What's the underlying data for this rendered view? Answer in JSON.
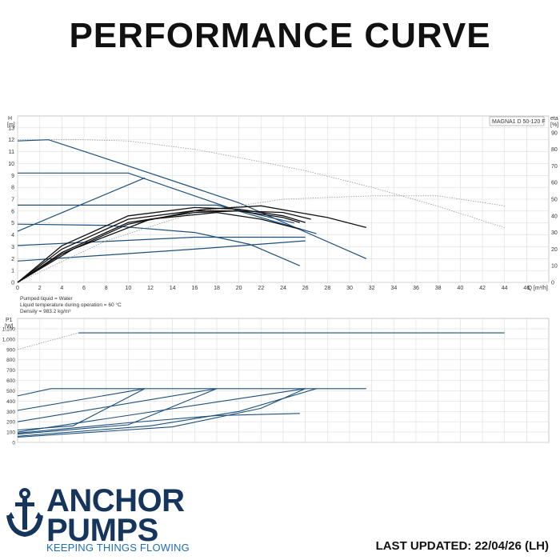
{
  "page": {
    "title": "PERFORMANCE CURVE",
    "updated": "LAST UPDATED: 22/04/26 (LH)"
  },
  "brand": {
    "line1": "ANCHOR",
    "line2": "PUMPS",
    "tagline": "KEEPING THINGS FLOWING",
    "colors": {
      "navy": "#16355c",
      "blue": "#1f6fb5"
    },
    "icon": "anchor-icon"
  },
  "chart_data": [
    {
      "type": "line",
      "title": "",
      "model_label": "MAGNA1 D 50-120 F",
      "xlabel": "Q [m³/h]",
      "ylabel": "H\n[m]",
      "y2label": "eta\n[%]",
      "xlim": [
        0,
        48
      ],
      "ylim": [
        0,
        14
      ],
      "y2lim": [
        0,
        100
      ],
      "xticks": [
        0,
        2,
        4,
        6,
        8,
        10,
        12,
        14,
        16,
        18,
        20,
        22,
        24,
        26,
        28,
        30,
        32,
        34,
        36,
        38,
        40,
        42,
        44,
        46
      ],
      "yticks": [
        0,
        1,
        2,
        3,
        4,
        5,
        6,
        7,
        8,
        9,
        10,
        11,
        12,
        13
      ],
      "y2ticks": [
        0,
        10,
        20,
        30,
        40,
        50,
        60,
        70,
        80,
        90
      ],
      "grid": true,
      "notes": [
        "Pumped liquid = Water",
        "Liquid temperature during operation = 60 °C",
        "Density = 983.2 kg/m³"
      ],
      "series": [
        {
          "kind": "head",
          "style": "dotted",
          "points": [
            [
              0,
              12
            ],
            [
              6,
              12
            ],
            [
              10,
              11.9
            ],
            [
              16,
              11.2
            ],
            [
              20,
              10.5
            ],
            [
              26,
              9.4
            ],
            [
              32,
              8.0
            ],
            [
              38,
              6.4
            ],
            [
              44,
              4.6
            ]
          ]
        },
        {
          "kind": "head",
          "points": [
            [
              0,
              11.9
            ],
            [
              2.8,
              12
            ],
            [
              10,
              9.8
            ],
            [
              20,
              6.7
            ],
            [
              31.5,
              2.0
            ]
          ]
        },
        {
          "kind": "head",
          "points": [
            [
              0,
              9.2
            ],
            [
              10,
              9.2
            ],
            [
              20,
              6.0
            ],
            [
              27,
              4.1
            ]
          ]
        },
        {
          "kind": "head",
          "points": [
            [
              0,
              6.5
            ],
            [
              18,
              6.5
            ],
            [
              25,
              5.0
            ]
          ]
        },
        {
          "kind": "head",
          "points": [
            [
              0,
              4.9
            ],
            [
              8,
              4.8
            ],
            [
              16,
              4.2
            ],
            [
              21,
              3.2
            ],
            [
              25.5,
              1.4
            ]
          ]
        },
        {
          "kind": "head",
          "points": [
            [
              0,
              3.1
            ],
            [
              16,
              3.8
            ],
            [
              26,
              3.8
            ]
          ]
        },
        {
          "kind": "head",
          "points": [
            [
              0,
              1.8
            ],
            [
              16,
              2.8
            ],
            [
              26,
              3.5
            ]
          ]
        },
        {
          "kind": "system",
          "points": [
            [
              0,
              4.3
            ],
            [
              11.5,
              8.8
            ]
          ]
        },
        {
          "kind": "eta",
          "style": "dotted",
          "points": [
            [
              0,
              0
            ],
            [
              8,
              25
            ],
            [
              16,
              42
            ],
            [
              24,
              50
            ],
            [
              32,
              52
            ],
            [
              38,
              52
            ],
            [
              44,
              46
            ]
          ]
        },
        {
          "kind": "eta",
          "points": [
            [
              0,
              0
            ],
            [
              4,
              20
            ],
            [
              10,
              38
            ],
            [
              17,
              44
            ],
            [
              22,
              46
            ],
            [
              28,
              39
            ],
            [
              31.5,
              33
            ]
          ]
        },
        {
          "kind": "eta",
          "points": [
            [
              0,
              0
            ],
            [
              4,
              22
            ],
            [
              10,
              40
            ],
            [
              16,
              45
            ],
            [
              20,
              44
            ],
            [
              24,
              40
            ],
            [
              26,
              36
            ]
          ]
        },
        {
          "kind": "eta",
          "points": [
            [
              0,
              0
            ],
            [
              4,
              18
            ],
            [
              10,
              36
            ],
            [
              16,
              42
            ],
            [
              20,
              43
            ],
            [
              24,
              42
            ],
            [
              26.5,
              38
            ]
          ]
        },
        {
          "kind": "eta",
          "points": [
            [
              0,
              0
            ],
            [
              4,
              17
            ],
            [
              10,
              35
            ],
            [
              16,
              43
            ],
            [
              20,
              43
            ],
            [
              24,
              39
            ],
            [
              25.5,
              36
            ]
          ]
        },
        {
          "kind": "eta",
          "points": [
            [
              0,
              0
            ],
            [
              5,
              20
            ],
            [
              12,
              38
            ],
            [
              18,
              42
            ],
            [
              22,
              38
            ],
            [
              25.5,
              32
            ]
          ]
        }
      ]
    },
    {
      "type": "line",
      "title": "",
      "ylabel": "P1\n[W]",
      "xlim": [
        0,
        48
      ],
      "ylim": [
        0,
        1200
      ],
      "yticks": [
        "0",
        "100",
        "200",
        "300",
        "400",
        "500",
        "600",
        "700",
        "800",
        "900",
        "1,000",
        "1,100"
      ],
      "yticks_values": [
        0,
        100,
        200,
        300,
        400,
        500,
        600,
        700,
        800,
        900,
        1000,
        1100
      ],
      "grid": true,
      "series": [
        {
          "kind": "power",
          "style": "dotted",
          "points": [
            [
              0,
              900
            ],
            [
              5.5,
              1060
            ]
          ]
        },
        {
          "kind": "power",
          "points": [
            [
              5.5,
              1060
            ],
            [
              44,
              1060
            ]
          ]
        },
        {
          "kind": "power",
          "points": [
            [
              0,
              450
            ],
            [
              3,
              520
            ],
            [
              31.5,
              520
            ]
          ]
        },
        {
          "kind": "power",
          "points": [
            [
              0,
              310
            ],
            [
              11.5,
              520
            ]
          ]
        },
        {
          "kind": "power",
          "points": [
            [
              0,
              200
            ],
            [
              18,
              520
            ]
          ]
        },
        {
          "kind": "power",
          "points": [
            [
              0,
              100
            ],
            [
              26,
              520
            ]
          ]
        },
        {
          "kind": "power",
          "points": [
            [
              0,
              120
            ],
            [
              5,
              160
            ],
            [
              11.5,
              520
            ]
          ]
        },
        {
          "kind": "power",
          "points": [
            [
              0,
              80
            ],
            [
              10,
              170
            ],
            [
              18,
              520
            ]
          ]
        },
        {
          "kind": "power",
          "points": [
            [
              0,
              60
            ],
            [
              12,
              160
            ],
            [
              20,
              300
            ],
            [
              27,
              520
            ]
          ]
        },
        {
          "kind": "power",
          "points": [
            [
              0,
              90
            ],
            [
              10,
              190
            ],
            [
              18,
              260
            ],
            [
              25.5,
              280
            ]
          ]
        },
        {
          "kind": "power",
          "points": [
            [
              0,
              50
            ],
            [
              14,
              150
            ],
            [
              22,
              330
            ],
            [
              26,
              520
            ]
          ]
        }
      ]
    }
  ]
}
